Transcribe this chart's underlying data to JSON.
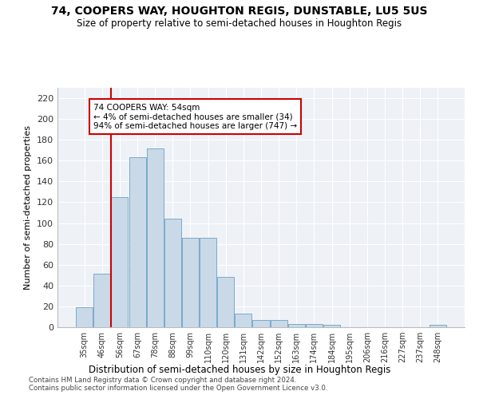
{
  "title1": "74, COOPERS WAY, HOUGHTON REGIS, DUNSTABLE, LU5 5US",
  "title2": "Size of property relative to semi-detached houses in Houghton Regis",
  "xlabel": "Distribution of semi-detached houses by size in Houghton Regis",
  "ylabel": "Number of semi-detached properties",
  "footnote1": "Contains HM Land Registry data © Crown copyright and database right 2024.",
  "footnote2": "Contains public sector information licensed under the Open Government Licence v3.0.",
  "annotation_title": "74 COOPERS WAY: 54sqm",
  "annotation_line1": "← 4% of semi-detached houses are smaller (34)",
  "annotation_line2": "94% of semi-detached houses are larger (747) →",
  "bar_color": "#c9d9e8",
  "bar_edge_color": "#7aaac8",
  "vline_color": "#cc0000",
  "annotation_box_edge": "#cc0000",
  "background_color": "#eef2f7",
  "categories": [
    "35sqm",
    "46sqm",
    "56sqm",
    "67sqm",
    "78sqm",
    "88sqm",
    "99sqm",
    "110sqm",
    "120sqm",
    "131sqm",
    "142sqm",
    "152sqm",
    "163sqm",
    "174sqm",
    "184sqm",
    "195sqm",
    "206sqm",
    "216sqm",
    "227sqm",
    "237sqm",
    "248sqm"
  ],
  "values": [
    19,
    51,
    125,
    163,
    172,
    104,
    86,
    86,
    48,
    13,
    7,
    7,
    3,
    3,
    2,
    0,
    0,
    0,
    0,
    0,
    2
  ],
  "vline_x": 1.5,
  "ylim": [
    0,
    230
  ],
  "yticks": [
    0,
    20,
    40,
    60,
    80,
    100,
    120,
    140,
    160,
    180,
    200,
    220
  ]
}
